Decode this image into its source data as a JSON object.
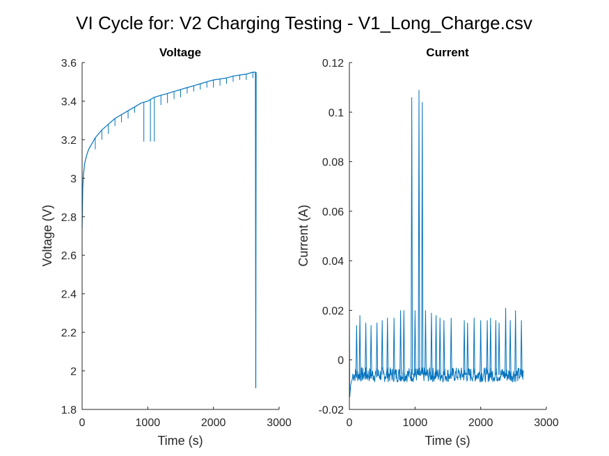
{
  "figure": {
    "title": "VI Cycle for: V2 Charging Testing - V1_Long_Charge.csv"
  },
  "chart_data": [
    {
      "type": "line",
      "title": "Voltage",
      "xlabel": "Time (s)",
      "ylabel": "Voltage (V)",
      "xlim": [
        0,
        3000
      ],
      "ylim": [
        1.8,
        3.6
      ],
      "xticks": [
        0,
        1000,
        2000,
        3000
      ],
      "yticks": [
        1.8,
        2.0,
        2.2,
        2.4,
        2.6,
        2.8,
        3.0,
        3.2,
        3.4,
        3.6
      ],
      "xtick_labels": [
        "0",
        "1000",
        "2000",
        "3000"
      ],
      "ytick_labels": [
        "1.8",
        "2",
        "2.2",
        "2.4",
        "2.6",
        "2.8",
        "3",
        "3.2",
        "3.4",
        "3.6"
      ],
      "grid": false,
      "line_color": "#0072BD",
      "series": [
        {
          "x": [
            0,
            10,
            20,
            40,
            70,
            100,
            150,
            200,
            300,
            400,
            500,
            600,
            700,
            800,
            900,
            1000,
            1100,
            1200,
            1300,
            1400,
            1500,
            1600,
            1700,
            1800,
            1900,
            2000,
            2100,
            2200,
            2300,
            2400,
            2500,
            2600,
            2640,
            2645,
            2650
          ],
          "y": [
            2.74,
            2.95,
            3.02,
            3.08,
            3.12,
            3.15,
            3.18,
            3.21,
            3.25,
            3.28,
            3.31,
            3.33,
            3.35,
            3.37,
            3.39,
            3.4,
            3.42,
            3.43,
            3.44,
            3.45,
            3.46,
            3.47,
            3.48,
            3.49,
            3.5,
            3.51,
            3.515,
            3.52,
            3.53,
            3.535,
            3.54,
            3.55,
            3.55,
            1.91,
            3.55
          ]
        }
      ],
      "dips": [
        {
          "x": 200,
          "y": 3.15
        },
        {
          "x": 300,
          "y": 3.2
        },
        {
          "x": 400,
          "y": 3.23
        },
        {
          "x": 500,
          "y": 3.27
        },
        {
          "x": 600,
          "y": 3.29
        },
        {
          "x": 700,
          "y": 3.31
        },
        {
          "x": 800,
          "y": 3.34
        },
        {
          "x": 940,
          "y": 3.19
        },
        {
          "x": 1040,
          "y": 3.19
        },
        {
          "x": 1100,
          "y": 3.19
        },
        {
          "x": 1200,
          "y": 3.38
        },
        {
          "x": 1300,
          "y": 3.39
        },
        {
          "x": 1400,
          "y": 3.41
        },
        {
          "x": 1500,
          "y": 3.42
        },
        {
          "x": 1600,
          "y": 3.44
        },
        {
          "x": 1700,
          "y": 3.45
        },
        {
          "x": 1800,
          "y": 3.46
        },
        {
          "x": 1900,
          "y": 3.47
        },
        {
          "x": 2000,
          "y": 3.47
        },
        {
          "x": 2100,
          "y": 3.48
        },
        {
          "x": 2200,
          "y": 3.49
        },
        {
          "x": 2300,
          "y": 3.5
        },
        {
          "x": 2400,
          "y": 3.51
        },
        {
          "x": 2500,
          "y": 3.51
        },
        {
          "x": 2600,
          "y": 3.52
        }
      ]
    },
    {
      "type": "line",
      "title": "Current",
      "xlabel": "Time (s)",
      "ylabel": "Current (A)",
      "xlim": [
        0,
        3000
      ],
      "ylim": [
        -0.02,
        0.12
      ],
      "xticks": [
        0,
        1000,
        2000,
        3000
      ],
      "yticks": [
        -0.02,
        0,
        0.02,
        0.04,
        0.06,
        0.08,
        0.1,
        0.12
      ],
      "xtick_labels": [
        "0",
        "1000",
        "2000",
        "3000"
      ],
      "ytick_labels": [
        "-0.02",
        "0",
        "0.02",
        "0.04",
        "0.06",
        "0.08",
        "0.1",
        "0.12"
      ],
      "grid": false,
      "line_color": "#0072BD",
      "baseline": {
        "x_start": 0,
        "x_end": 2650,
        "y_mean": -0.006,
        "y_band": 0.003
      },
      "initial_segment": {
        "x": [
          0,
          5,
          20,
          50
        ],
        "y": [
          0.02,
          -0.015,
          -0.01,
          -0.007
        ]
      },
      "spikes": [
        {
          "x": 110,
          "y": 0.014
        },
        {
          "x": 160,
          "y": 0.018
        },
        {
          "x": 250,
          "y": 0.015
        },
        {
          "x": 330,
          "y": 0.014
        },
        {
          "x": 420,
          "y": 0.015
        },
        {
          "x": 500,
          "y": 0.016
        },
        {
          "x": 580,
          "y": 0.017
        },
        {
          "x": 680,
          "y": 0.017
        },
        {
          "x": 780,
          "y": 0.02
        },
        {
          "x": 830,
          "y": 0.02
        },
        {
          "x": 950,
          "y": 0.106
        },
        {
          "x": 1000,
          "y": 0.02
        },
        {
          "x": 1060,
          "y": 0.109
        },
        {
          "x": 1110,
          "y": 0.104
        },
        {
          "x": 1160,
          "y": 0.02
        },
        {
          "x": 1250,
          "y": 0.019
        },
        {
          "x": 1320,
          "y": 0.018
        },
        {
          "x": 1380,
          "y": 0.017
        },
        {
          "x": 1440,
          "y": 0.016
        },
        {
          "x": 1550,
          "y": 0.017
        },
        {
          "x": 1750,
          "y": 0.016
        },
        {
          "x": 1800,
          "y": 0.015
        },
        {
          "x": 1900,
          "y": 0.017
        },
        {
          "x": 2000,
          "y": 0.016
        },
        {
          "x": 2100,
          "y": 0.016
        },
        {
          "x": 2150,
          "y": 0.017
        },
        {
          "x": 2230,
          "y": 0.016
        },
        {
          "x": 2280,
          "y": 0.015
        },
        {
          "x": 2380,
          "y": 0.021
        },
        {
          "x": 2450,
          "y": 0.016
        },
        {
          "x": 2530,
          "y": 0.02
        },
        {
          "x": 2620,
          "y": 0.016
        }
      ]
    }
  ]
}
